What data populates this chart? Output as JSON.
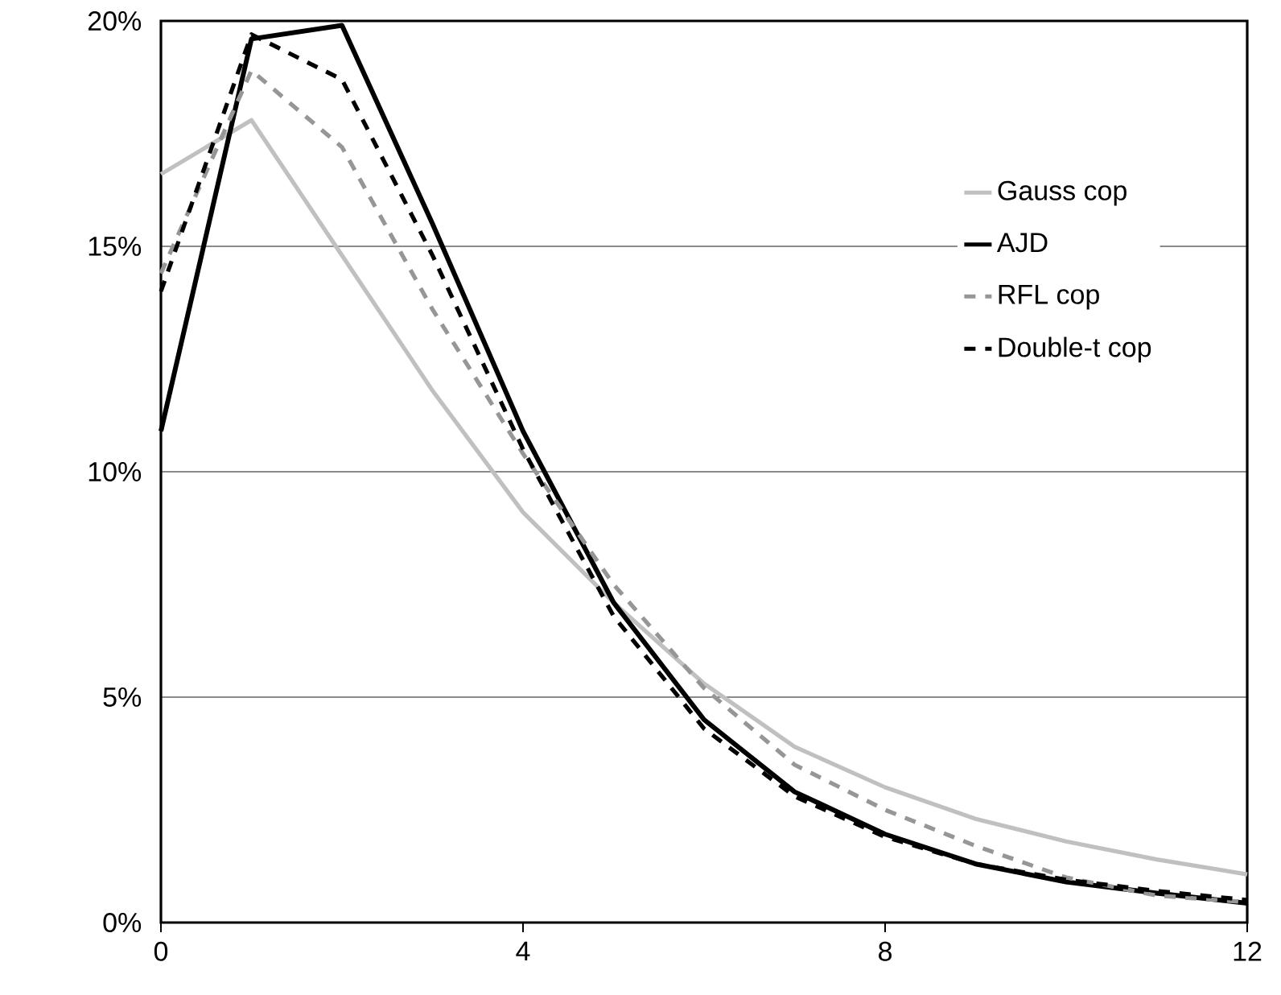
{
  "chart_data": {
    "type": "line",
    "x": [
      0,
      1,
      2,
      3,
      4,
      5,
      6,
      7,
      8,
      9,
      10,
      11,
      12
    ],
    "xlim": [
      0,
      12
    ],
    "xticks": [
      0,
      4,
      8,
      12
    ],
    "ylim": [
      0,
      20
    ],
    "yticks": [
      {
        "value": 0,
        "label": "0%"
      },
      {
        "value": 5,
        "label": "5%"
      },
      {
        "value": 10,
        "label": "10%"
      },
      {
        "value": 15,
        "label": "15%"
      },
      {
        "value": 20,
        "label": "20%"
      }
    ],
    "grid": "y",
    "legend": "top right",
    "series": [
      {
        "name": "Gauss cop",
        "color": "#c0c0c0",
        "line_style": "solid",
        "values": [
          16.6,
          17.8,
          14.8,
          11.8,
          9.1,
          7.1,
          5.3,
          3.9,
          3.0,
          2.3,
          1.8,
          1.4,
          1.07
        ]
      },
      {
        "name": "AJD",
        "color": "#000000",
        "line_style": "solid",
        "values": [
          10.9,
          19.6,
          19.9,
          15.5,
          10.9,
          7.1,
          4.5,
          2.9,
          1.96,
          1.3,
          0.9,
          0.65,
          0.43
        ]
      },
      {
        "name": "RFL cop",
        "color": "#969696",
        "line_style": "dashed",
        "values": [
          14.4,
          18.9,
          17.2,
          13.6,
          10.4,
          7.5,
          5.2,
          3.5,
          2.5,
          1.7,
          1.0,
          0.6,
          0.45
        ]
      },
      {
        "name": "Double-t cop",
        "color": "#000000",
        "line_style": "dashed",
        "values": [
          14.0,
          19.7,
          18.7,
          14.8,
          10.5,
          6.8,
          4.3,
          2.8,
          1.9,
          1.3,
          0.95,
          0.7,
          0.5
        ]
      }
    ]
  }
}
